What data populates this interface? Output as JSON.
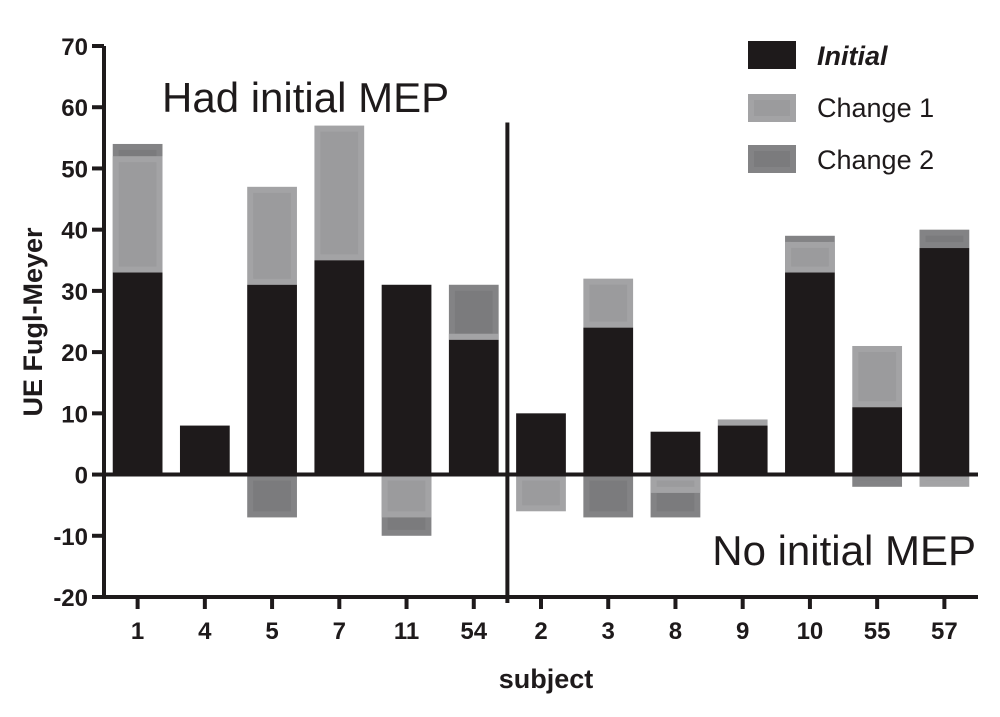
{
  "chart_data": {
    "type": "bar",
    "xlabel": "subject",
    "ylabel": "UE Fugl-Meyer",
    "ylim": [
      -20,
      70
    ],
    "yticks": [
      70,
      60,
      50,
      40,
      30,
      20,
      10,
      0,
      -10,
      -20
    ],
    "categories": [
      "1",
      "4",
      "5",
      "7",
      "11",
      "54",
      "2",
      "3",
      "8",
      "9",
      "10",
      "55",
      "57"
    ],
    "annotations": [
      "Had initial MEP",
      "No initial MEP"
    ],
    "group_divider_after_index": 5,
    "series": [
      {
        "name": "Initial",
        "color": "#1e1a1b",
        "values": [
          33,
          8,
          31,
          35,
          31,
          22,
          10,
          24,
          7,
          8,
          33,
          11,
          37
        ]
      },
      {
        "name": "Change 1",
        "color": "#a3a3a5",
        "values": [
          52,
          null,
          47,
          57,
          -7,
          23,
          -6,
          32,
          -3,
          9,
          38,
          21,
          -2
        ]
      },
      {
        "name": "Change 2",
        "color": "#838385",
        "values": [
          54,
          null,
          -7,
          null,
          -10,
          31,
          null,
          -7,
          -7,
          null,
          39,
          -2,
          40
        ]
      }
    ],
    "legend_position": "top-right",
    "grid": false
  }
}
